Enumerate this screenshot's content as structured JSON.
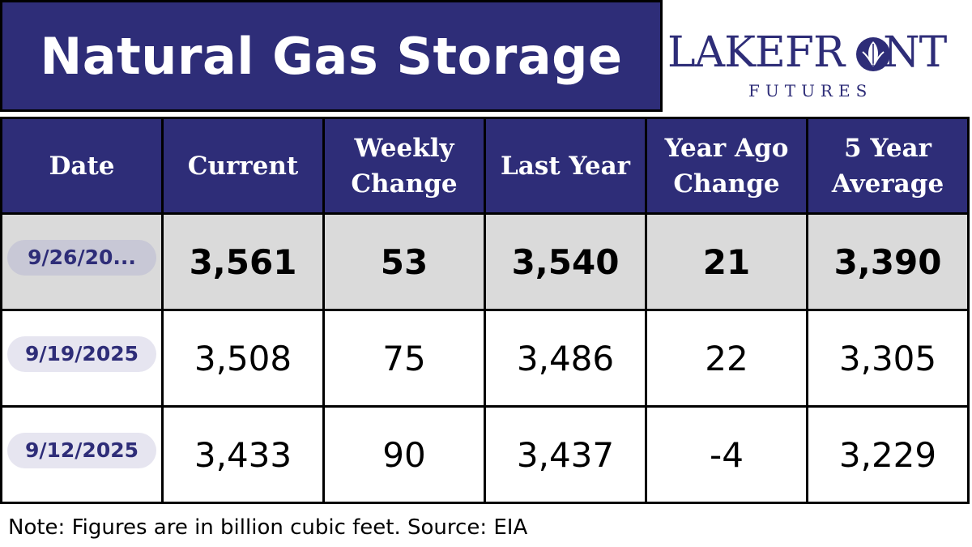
{
  "header": {
    "title": "Natural Gas Storage",
    "logo_main_left": "LAKEFR",
    "logo_main_right": "NT",
    "logo_sub": "FUTURES"
  },
  "chart_data": {
    "type": "table",
    "columns": [
      "Date",
      "Current",
      "Weekly Change",
      "Last Year",
      "Year Ago Change",
      "5 Year Average"
    ],
    "rows": [
      [
        "9/26/20...",
        "3,561",
        "53",
        "3,540",
        "21",
        "3,390"
      ],
      [
        "9/19/2025",
        "3,508",
        "75",
        "3,486",
        "22",
        "3,305"
      ],
      [
        "9/12/2025",
        "3,433",
        "90",
        "3,437",
        "-4",
        "3,229"
      ]
    ]
  },
  "footer": {
    "note": "Note: Figures are in billion cubic feet. Source: EIA"
  },
  "colors": {
    "brand_navy": "#2e2d78",
    "highlight_row": "#dadada",
    "date_pill": "#e6e5f0"
  }
}
